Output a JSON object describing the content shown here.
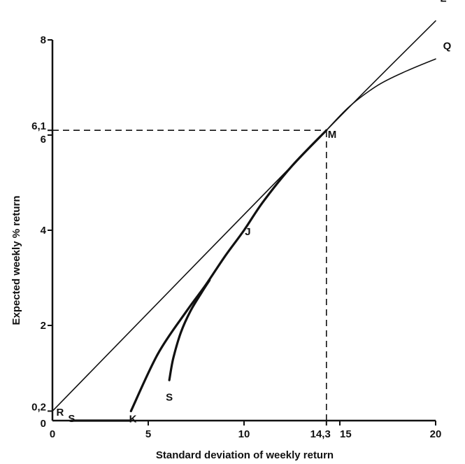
{
  "chart_data": {
    "type": "line",
    "title": "",
    "xlabel": "Standard deviation of weekly return",
    "ylabel": "Expected weekly % return",
    "xlim": [
      0,
      20
    ],
    "ylim": [
      0,
      8
    ],
    "grid": false,
    "x_ticks": [
      {
        "value": 0,
        "label": "0"
      },
      {
        "value": 5,
        "label": "5"
      },
      {
        "value": 10,
        "label": "10"
      },
      {
        "value": 14.3,
        "label": "14,3"
      },
      {
        "value": 15,
        "label": "15"
      },
      {
        "value": 20,
        "label": "20"
      }
    ],
    "y_ticks": [
      {
        "value": 0,
        "label": "0"
      },
      {
        "value": 0.2,
        "label": "0,2"
      },
      {
        "value": 2,
        "label": "2"
      },
      {
        "value": 4,
        "label": "4"
      },
      {
        "value": 6,
        "label": "6"
      },
      {
        "value": 6.1,
        "label": "6,1"
      },
      {
        "value": 8,
        "label": "8"
      }
    ],
    "series": [
      {
        "key": "capital-market-line",
        "style": "thin",
        "x": [
          0,
          14.3,
          20
        ],
        "y": [
          0.2,
          6.1,
          8.4
        ]
      },
      {
        "key": "efficient-frontier-upper",
        "style": "thin",
        "x": [
          14.3,
          15.5,
          17,
          18.5,
          20
        ],
        "y": [
          6.1,
          6.6,
          7.05,
          7.35,
          7.6
        ]
      },
      {
        "key": "efficient-frontier",
        "style": "thick",
        "x": [
          4.1,
          5.5,
          7,
          8,
          9,
          10,
          11,
          12.5,
          14.3
        ],
        "y": [
          0.2,
          1.4,
          2.3,
          2.85,
          3.45,
          4.0,
          4.6,
          5.35,
          6.1
        ]
      },
      {
        "key": "portfolio-curve-s",
        "style": "thick",
        "x": [
          6.1,
          6.3,
          6.7,
          7.2,
          7.8,
          8.2
        ],
        "y": [
          0.85,
          1.3,
          1.85,
          2.3,
          2.7,
          2.95
        ]
      },
      {
        "key": "x-axis-thick",
        "style": "thick",
        "x": [
          1.0,
          4.1
        ],
        "y": [
          0,
          0
        ]
      }
    ],
    "reference_lines": [
      {
        "key": "h-guide",
        "x": [
          0,
          14.3
        ],
        "y": [
          6.1,
          6.1
        ]
      },
      {
        "key": "v-guide",
        "x": [
          14.3,
          14.3
        ],
        "y": [
          0,
          6.1
        ]
      }
    ],
    "point_labels": [
      {
        "text": "R",
        "x": 0.4,
        "y": 0.1
      },
      {
        "text": "S",
        "x": 1.0,
        "y": -0.03
      },
      {
        "text": "K",
        "x": 4.2,
        "y": -0.04
      },
      {
        "text": "S",
        "x": 6.1,
        "y": 0.42
      },
      {
        "text": "J",
        "x": 10.2,
        "y": 3.9
      },
      {
        "text": "M",
        "x": 14.6,
        "y": 5.94
      },
      {
        "text": "L",
        "x": 20.4,
        "y": 8.8
      },
      {
        "text": "Q",
        "x": 20.6,
        "y": 7.8
      }
    ]
  }
}
